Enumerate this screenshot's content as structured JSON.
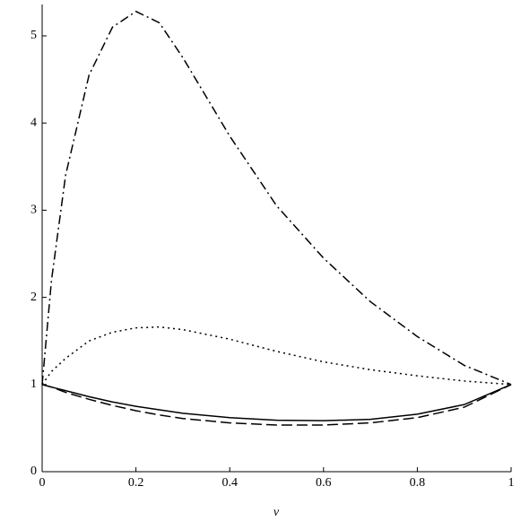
{
  "chart_data": {
    "type": "line",
    "x_label": "v",
    "x": [
      0,
      0.02,
      0.05,
      0.1,
      0.15,
      0.2,
      0.25,
      0.3,
      0.4,
      0.5,
      0.6,
      0.7,
      0.8,
      0.9,
      1
    ],
    "series": [
      {
        "color": "#000000",
        "dash": "dashdot",
        "values": [
          1,
          2.2,
          3.4,
          4.55,
          5.1,
          5.28,
          5.15,
          4.75,
          3.85,
          3.05,
          2.45,
          1.95,
          1.55,
          1.22,
          1
        ]
      },
      {
        "color": "#000000",
        "dash": "dotted",
        "values": [
          1,
          1.15,
          1.3,
          1.5,
          1.6,
          1.65,
          1.66,
          1.63,
          1.52,
          1.38,
          1.26,
          1.17,
          1.1,
          1.04,
          1
        ]
      },
      {
        "color": "#000000",
        "dash": "solid",
        "values": [
          1,
          0.97,
          0.93,
          0.86,
          0.8,
          0.75,
          0.71,
          0.67,
          0.62,
          0.59,
          0.585,
          0.6,
          0.66,
          0.77,
          1
        ]
      },
      {
        "color": "#000000",
        "dash": "dashed",
        "values": [
          1,
          0.97,
          0.91,
          0.83,
          0.76,
          0.7,
          0.65,
          0.61,
          0.56,
          0.535,
          0.535,
          0.56,
          0.62,
          0.74,
          1
        ]
      }
    ],
    "xlim": [
      0,
      1
    ],
    "ylim": [
      0,
      5.36
    ],
    "xticks": [
      0,
      0.2,
      0.4,
      0.6,
      0.8,
      1
    ],
    "yticks": [
      0,
      1,
      2,
      3,
      4,
      5
    ]
  }
}
